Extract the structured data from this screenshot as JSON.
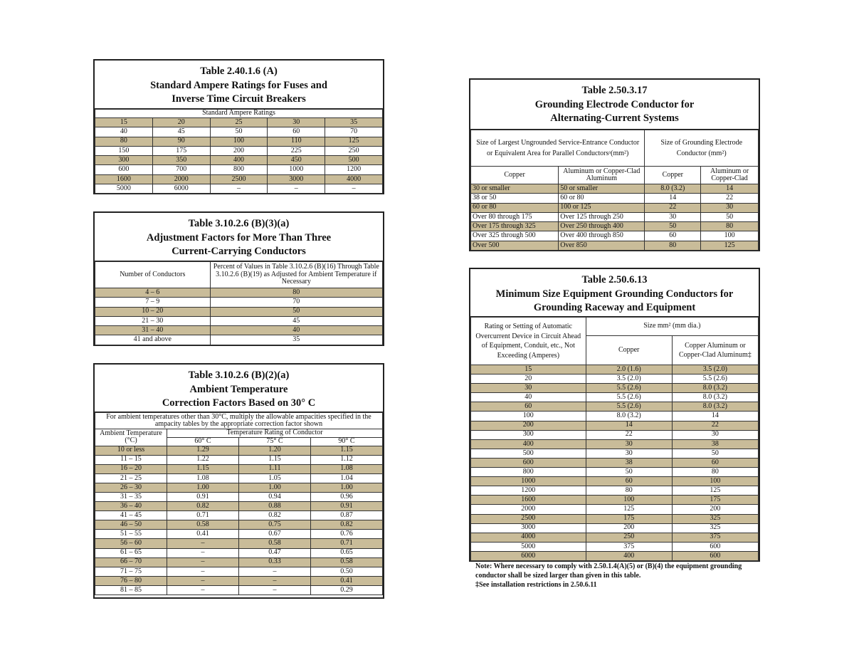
{
  "tables": [
    {
      "title": [
        "Table 2.40.1.6 (A)",
        "Standard Ampere Ratings for Fuses and",
        "Inverse Time Circuit Breakers"
      ],
      "header": "Standard Ampere Ratings",
      "rows": [
        [
          "15",
          "20",
          "25",
          "30",
          "35"
        ],
        [
          "40",
          "45",
          "50",
          "60",
          "70"
        ],
        [
          "80",
          "90",
          "100",
          "110",
          "125"
        ],
        [
          "150",
          "175",
          "200",
          "225",
          "250"
        ],
        [
          "300",
          "350",
          "400",
          "450",
          "500"
        ],
        [
          "600",
          "700",
          "800",
          "1000",
          "1200"
        ],
        [
          "1600",
          "2000",
          "2500",
          "3000",
          "4000"
        ],
        [
          "5000",
          "6000",
          "–",
          "–",
          "–"
        ]
      ]
    },
    {
      "title": [
        "Table 3.10.2.6 (B)(3)(a)",
        "Adjustment Factors for More Than Three",
        "Current-Carrying Conductors"
      ],
      "header": [
        "Number of Conductors",
        "Percent of Values in Table 3.10.2.6 (B)(16) Through Table 3.10.2.6 (B)(19) as Adjusted for Ambient Temperature if Necessary"
      ],
      "rows": [
        [
          "4 – 6",
          "80"
        ],
        [
          "7 – 9",
          "70"
        ],
        [
          "10 – 20",
          "50"
        ],
        [
          "21 – 30",
          "45"
        ],
        [
          "31 – 40",
          "40"
        ],
        [
          "41 and above",
          "35"
        ]
      ]
    },
    {
      "title": [
        "Table 3.10.2.6 (B)(2)(a)",
        "Ambient Temperature",
        "Correction Factors Based on 30° C"
      ],
      "note": "For ambient temperatures other than 30°C, multiply the allowable ampacities specified in the ampacity tables by the appropriate correction factor shown",
      "header": [
        "Ambient Temperature (°C)",
        "Temperature Rating of Conductor",
        "60° C",
        "75° C",
        "90° C"
      ],
      "rows": [
        [
          "10 or less",
          "1.29",
          "1.20",
          "1.15"
        ],
        [
          "11 – 15",
          "1.22",
          "1.15",
          "1.12"
        ],
        [
          "16 – 20",
          "1.15",
          "1.11",
          "1.08"
        ],
        [
          "21 – 25",
          "1.08",
          "1.05",
          "1.04"
        ],
        [
          "26 – 30",
          "1.00",
          "1.00",
          "1.00"
        ],
        [
          "31 – 35",
          "0.91",
          "0.94",
          "0.96"
        ],
        [
          "36 – 40",
          "0.82",
          "0.88",
          "0.91"
        ],
        [
          "41 – 45",
          "0.71",
          "0.82",
          "0.87"
        ],
        [
          "46 – 50",
          "0.58",
          "0.75",
          "0.82"
        ],
        [
          "51 – 55",
          "0.41",
          "0.67",
          "0.76"
        ],
        [
          "56 – 60",
          "–",
          "0.58",
          "0.71"
        ],
        [
          "61 – 65",
          "–",
          "0.47",
          "0.65"
        ],
        [
          "66 – 70",
          "–",
          "0.33",
          "0.58"
        ],
        [
          "71 – 75",
          "–",
          "–",
          "0.50"
        ],
        [
          "76 – 80",
          "–",
          "–",
          "0.41"
        ],
        [
          "81 – 85",
          "–",
          "–",
          "0.29"
        ]
      ]
    },
    {
      "title": [
        "Table 2.50.3.17",
        "Grounding Electrode Conductor for",
        "Alternating-Current Systems"
      ],
      "header": [
        "Size of Largest Ungrounded Service-Entrance Conductor or Equivalent Area for Parallel Conductorsᵃ(mm²)",
        "Size of Grounding Electrode Conductor (mm²)",
        "Copper",
        "Aluminum or Copper-Clad Aluminum",
        "Copper",
        "Aluminum or Copper-Clad"
      ],
      "rows": [
        [
          "30 or smaller",
          "50 or smaller",
          "8.0 (3.2)",
          "14"
        ],
        [
          "38 or 50",
          "60 or 80",
          "14",
          "22"
        ],
        [
          "60 or 80",
          "100 or 125",
          "22",
          "30"
        ],
        [
          "Over 80 through 175",
          "Over 125 through 250",
          "30",
          "50"
        ],
        [
          "Over 175 through 325",
          "Over 250 through 400",
          "50",
          "80"
        ],
        [
          "Over 325 through 500",
          "Over 400 through 850",
          "60",
          "100"
        ],
        [
          "Over 500",
          "Over 850",
          "80",
          "125"
        ]
      ]
    },
    {
      "title": [
        "Table 2.50.6.13",
        "Minimum Size Equipment Grounding Conductors for",
        "Grounding Raceway and Equipment"
      ],
      "header": [
        "Rating or Setting of Automatic Overcurrent Device in Circuit Ahead of Equipment, Conduit, etc., Not Exceeding (Amperes)",
        "Size mm² (mm dia.)",
        "Copper",
        "Copper Aluminum or Copper-Clad Aluminum‡"
      ],
      "rows": [
        [
          "15",
          "2.0 (1.6)",
          "3.5 (2.0)"
        ],
        [
          "20",
          "3.5 (2.0)",
          "5.5 (2.6)"
        ],
        [
          "30",
          "5.5 (2.6)",
          "8.0 (3.2)"
        ],
        [
          "40",
          "5.5 (2.6)",
          "8.0 (3.2)"
        ],
        [
          "60",
          "5.5 (2.6)",
          "8.0 (3.2)"
        ],
        [
          "100",
          "8.0 (3.2)",
          "14"
        ],
        [
          "200",
          "14",
          "22"
        ],
        [
          "300",
          "22",
          "30"
        ],
        [
          "400",
          "30",
          "38"
        ],
        [
          "500",
          "30",
          "50"
        ],
        [
          "600",
          "38",
          "60"
        ],
        [
          "800",
          "50",
          "80"
        ],
        [
          "1000",
          "60",
          "100"
        ],
        [
          "1200",
          "80",
          "125"
        ],
        [
          "1600",
          "100",
          "175"
        ],
        [
          "2000",
          "125",
          "200"
        ],
        [
          "2500",
          "175",
          "325"
        ],
        [
          "3000",
          "200",
          "325"
        ],
        [
          "4000",
          "250",
          "375"
        ],
        [
          "5000",
          "375",
          "600"
        ],
        [
          "6000",
          "400",
          "600"
        ]
      ],
      "notes": [
        "Note: Where necessary to comply with 2.50.1.4(A)(5) or (B)(4) the equipment grounding conductor shall be sized larger than given in this table.",
        "‡See installation restrictions in 2.50.6.11"
      ]
    }
  ]
}
